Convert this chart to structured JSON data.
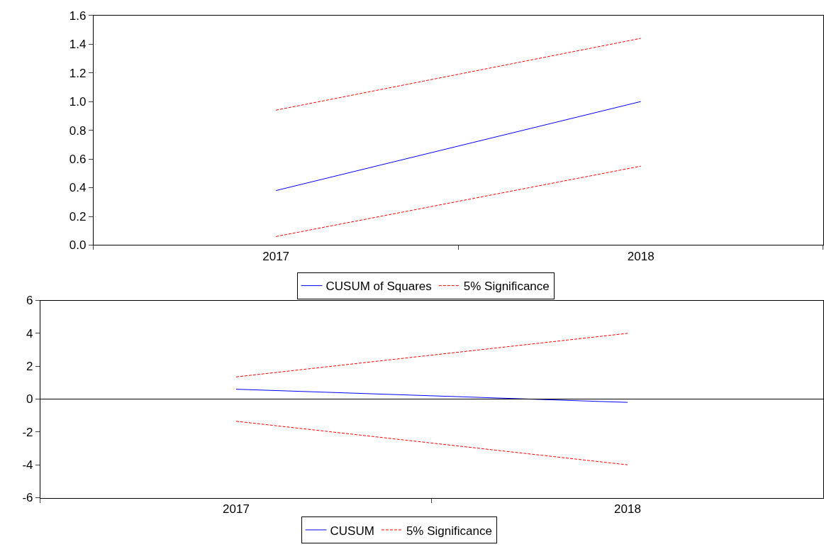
{
  "chart_data": [
    {
      "type": "line",
      "categories": [
        "2017",
        "2018"
      ],
      "series": [
        {
          "name": "CUSUM of Squares",
          "color": "#0000ff",
          "values": [
            0.38,
            1.0
          ],
          "line_style": "solid"
        },
        {
          "name": "5% Significance",
          "color": "#ff0000",
          "values": [
            0.94,
            1.44
          ],
          "line_style": "dashed"
        },
        {
          "color": "#ff0000",
          "values": [
            0.06,
            0.55
          ],
          "line_style": "dashed"
        }
      ],
      "ylim": [
        0,
        1.6
      ],
      "yticks": [
        {
          "value": 0,
          "label": "0.0"
        },
        0.2,
        0.4,
        0.6,
        0.8,
        {
          "value": 1.0,
          "label": "1.0"
        },
        1.2,
        1.4,
        1.6
      ],
      "grid": false,
      "legend": "bottom",
      "marker": "none"
    },
    {
      "type": "line",
      "categories": [
        "2017",
        "2018"
      ],
      "series": [
        {
          "name": "CUSUM",
          "color": "#0000ff",
          "values": [
            0.6,
            -0.2
          ],
          "line_style": "solid"
        },
        {
          "name": "5% Significance",
          "color": "#ff0000",
          "values": [
            1.35,
            4.0
          ],
          "line_style": "dashed"
        },
        {
          "color": "#ff0000",
          "values": [
            -1.35,
            -4.0
          ],
          "line_style": "dashed"
        }
      ],
      "ylim": [
        -6,
        6
      ],
      "yticks": [
        -6,
        -4,
        -2,
        0,
        2,
        4,
        6
      ],
      "ref_lines": [
        {
          "axis": "y",
          "value": 0,
          "color": "#000000"
        }
      ],
      "grid": false,
      "legend": "bottom",
      "marker": "none"
    }
  ]
}
